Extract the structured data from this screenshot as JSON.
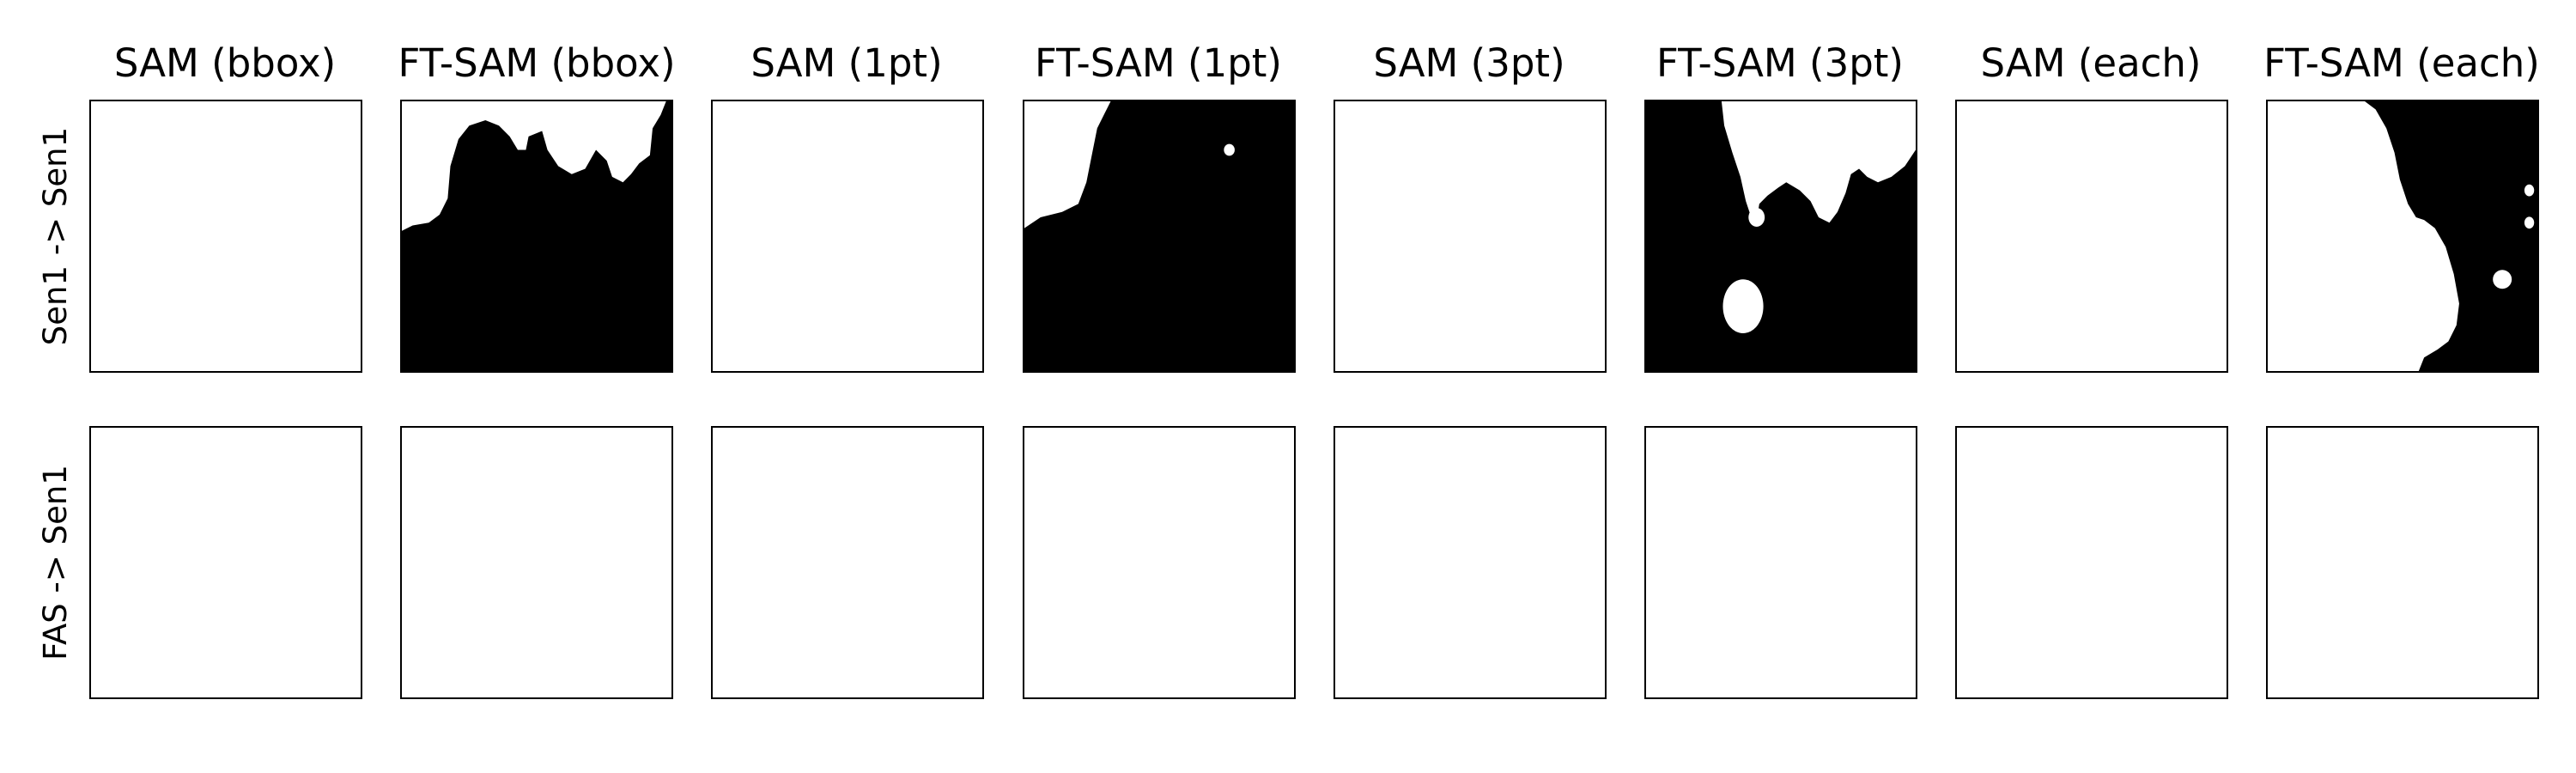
{
  "figure": {
    "column_titles": [
      "SAM (bbox)",
      "FT-SAM (bbox)",
      "SAM (1pt)",
      "FT-SAM (1pt)",
      "SAM (3pt)",
      "FT-SAM (3pt)",
      "SAM (each)",
      "FT-SAM (each)"
    ],
    "row_labels": [
      "Sen1 -> Sen1",
      "FAS -> Sen1"
    ],
    "panels": [
      [
        {
          "mask": "empty"
        },
        {
          "mask": "ft-sam-bbox-mask"
        },
        {
          "mask": "empty"
        },
        {
          "mask": "ft-sam-1pt-mask"
        },
        {
          "mask": "empty"
        },
        {
          "mask": "ft-sam-3pt-mask"
        },
        {
          "mask": "empty"
        },
        {
          "mask": "ft-sam-each-mask"
        }
      ],
      [
        {
          "mask": "empty"
        },
        {
          "mask": "empty"
        },
        {
          "mask": "empty"
        },
        {
          "mask": "empty"
        },
        {
          "mask": "empty"
        },
        {
          "mask": "empty"
        },
        {
          "mask": "empty"
        },
        {
          "mask": "empty"
        }
      ]
    ],
    "colors": {
      "mask_foreground": "#000000",
      "background": "#ffffff",
      "frame": "#000000"
    }
  }
}
